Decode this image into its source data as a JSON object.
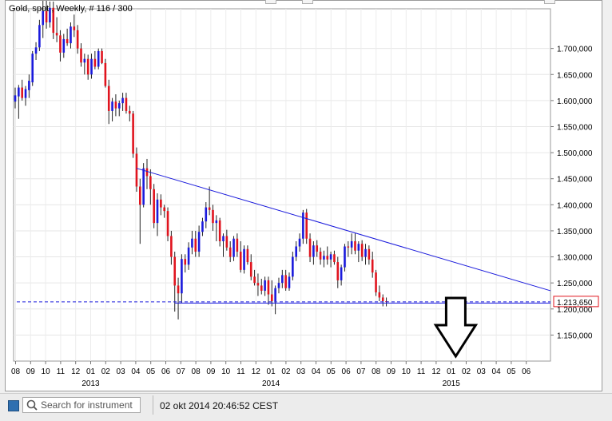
{
  "header": {
    "instrument_label": "Gold, spot , Weekly, # 116 / 300"
  },
  "status": {
    "search_placeholder": "Search for instrument",
    "timestamp": "02 okt 2014 20:46:52 CEST"
  },
  "colors": {
    "up": "#1a1adc",
    "down": "#e0141e",
    "line": "#1a1adc",
    "price_label_border": "#e0141e",
    "arrow": "#000000"
  },
  "chart_data": {
    "type": "candlestick",
    "title": "Gold, spot , Weekly, # 116 / 300",
    "current_price_label": "1.213,650",
    "current_price": 1213.65,
    "ylim": [
      1100,
      1770
    ],
    "yticks": [
      {
        "value": 1150,
        "label": "1.150,000"
      },
      {
        "value": 1200,
        "label": "1.200,000"
      },
      {
        "value": 1250,
        "label": "1.250,000"
      },
      {
        "value": 1300,
        "label": "1.300,000"
      },
      {
        "value": 1350,
        "label": "1.350,000"
      },
      {
        "value": 1400,
        "label": "1.400,000"
      },
      {
        "value": 1450,
        "label": "1.450,000"
      },
      {
        "value": 1500,
        "label": "1.500,000"
      },
      {
        "value": 1550,
        "label": "1.550,000"
      },
      {
        "value": 1600,
        "label": "1.600,000"
      },
      {
        "value": 1650,
        "label": "1.650,000"
      },
      {
        "value": 1700,
        "label": "1.700,000"
      }
    ],
    "month_labels": [
      "08",
      "09",
      "10",
      "11",
      "12",
      "01",
      "02",
      "03",
      "04",
      "05",
      "06",
      "07",
      "08",
      "09",
      "10",
      "11",
      "12",
      "01",
      "02",
      "03",
      "04",
      "05",
      "06",
      "07",
      "08",
      "09",
      "10",
      "11",
      "12",
      "01",
      "02",
      "03",
      "04",
      "05",
      "06"
    ],
    "year_labels": [
      {
        "label": "2013",
        "month_index": 5
      },
      {
        "label": "2014",
        "month_index": 17
      },
      {
        "label": "2015",
        "month_index": 29
      }
    ],
    "month_span": 35,
    "candles": [
      {
        "o": 1598,
        "h": 1625,
        "l": 1585,
        "c": 1610
      },
      {
        "o": 1608,
        "h": 1630,
        "l": 1565,
        "c": 1625
      },
      {
        "o": 1625,
        "h": 1640,
        "l": 1600,
        "c": 1605
      },
      {
        "o": 1605,
        "h": 1628,
        "l": 1590,
        "c": 1622
      },
      {
        "o": 1620,
        "h": 1650,
        "l": 1605,
        "c": 1638
      },
      {
        "o": 1635,
        "h": 1695,
        "l": 1628,
        "c": 1690
      },
      {
        "o": 1690,
        "h": 1712,
        "l": 1678,
        "c": 1702
      },
      {
        "o": 1702,
        "h": 1755,
        "l": 1695,
        "c": 1745
      },
      {
        "o": 1745,
        "h": 1795,
        "l": 1720,
        "c": 1772
      },
      {
        "o": 1772,
        "h": 1798,
        "l": 1738,
        "c": 1750
      },
      {
        "o": 1750,
        "h": 1790,
        "l": 1740,
        "c": 1778
      },
      {
        "o": 1778,
        "h": 1790,
        "l": 1718,
        "c": 1730
      },
      {
        "o": 1730,
        "h": 1760,
        "l": 1712,
        "c": 1725
      },
      {
        "o": 1725,
        "h": 1735,
        "l": 1675,
        "c": 1692
      },
      {
        "o": 1692,
        "h": 1728,
        "l": 1682,
        "c": 1718
      },
      {
        "o": 1718,
        "h": 1738,
        "l": 1705,
        "c": 1710
      },
      {
        "o": 1710,
        "h": 1750,
        "l": 1700,
        "c": 1742
      },
      {
        "o": 1742,
        "h": 1765,
        "l": 1722,
        "c": 1735
      },
      {
        "o": 1735,
        "h": 1745,
        "l": 1690,
        "c": 1700
      },
      {
        "o": 1700,
        "h": 1710,
        "l": 1665,
        "c": 1673
      },
      {
        "o": 1673,
        "h": 1690,
        "l": 1650,
        "c": 1680
      },
      {
        "o": 1680,
        "h": 1688,
        "l": 1640,
        "c": 1650
      },
      {
        "o": 1650,
        "h": 1690,
        "l": 1642,
        "c": 1680
      },
      {
        "o": 1680,
        "h": 1695,
        "l": 1660,
        "c": 1665
      },
      {
        "o": 1665,
        "h": 1700,
        "l": 1660,
        "c": 1695
      },
      {
        "o": 1695,
        "h": 1700,
        "l": 1670,
        "c": 1672
      },
      {
        "o": 1672,
        "h": 1680,
        "l": 1625,
        "c": 1628
      },
      {
        "o": 1628,
        "h": 1640,
        "l": 1555,
        "c": 1580
      },
      {
        "o": 1580,
        "h": 1605,
        "l": 1560,
        "c": 1598
      },
      {
        "o": 1598,
        "h": 1612,
        "l": 1570,
        "c": 1585
      },
      {
        "o": 1585,
        "h": 1600,
        "l": 1570,
        "c": 1595
      },
      {
        "o": 1595,
        "h": 1615,
        "l": 1580,
        "c": 1605
      },
      {
        "o": 1605,
        "h": 1615,
        "l": 1575,
        "c": 1580
      },
      {
        "o": 1580,
        "h": 1590,
        "l": 1560,
        "c": 1575
      },
      {
        "o": 1575,
        "h": 1580,
        "l": 1490,
        "c": 1498
      },
      {
        "o": 1498,
        "h": 1510,
        "l": 1425,
        "c": 1435
      },
      {
        "o": 1435,
        "h": 1450,
        "l": 1325,
        "c": 1400
      },
      {
        "o": 1400,
        "h": 1480,
        "l": 1395,
        "c": 1470
      },
      {
        "o": 1470,
        "h": 1488,
        "l": 1430,
        "c": 1455
      },
      {
        "o": 1455,
        "h": 1468,
        "l": 1400,
        "c": 1430
      },
      {
        "o": 1430,
        "h": 1440,
        "l": 1355,
        "c": 1365
      },
      {
        "o": 1365,
        "h": 1422,
        "l": 1340,
        "c": 1410
      },
      {
        "o": 1410,
        "h": 1420,
        "l": 1380,
        "c": 1395
      },
      {
        "o": 1395,
        "h": 1400,
        "l": 1375,
        "c": 1388
      },
      {
        "o": 1388,
        "h": 1395,
        "l": 1330,
        "c": 1340
      },
      {
        "o": 1340,
        "h": 1350,
        "l": 1285,
        "c": 1300
      },
      {
        "o": 1300,
        "h": 1310,
        "l": 1195,
        "c": 1245
      },
      {
        "o": 1245,
        "h": 1260,
        "l": 1180,
        "c": 1230
      },
      {
        "o": 1230,
        "h": 1305,
        "l": 1212,
        "c": 1296
      },
      {
        "o": 1296,
        "h": 1305,
        "l": 1270,
        "c": 1285
      },
      {
        "o": 1285,
        "h": 1328,
        "l": 1275,
        "c": 1318
      },
      {
        "o": 1318,
        "h": 1350,
        "l": 1305,
        "c": 1335
      },
      {
        "o": 1335,
        "h": 1350,
        "l": 1300,
        "c": 1310
      },
      {
        "o": 1310,
        "h": 1360,
        "l": 1300,
        "c": 1348
      },
      {
        "o": 1348,
        "h": 1375,
        "l": 1340,
        "c": 1368
      },
      {
        "o": 1368,
        "h": 1405,
        "l": 1355,
        "c": 1395
      },
      {
        "o": 1395,
        "h": 1435,
        "l": 1380,
        "c": 1390
      },
      {
        "o": 1390,
        "h": 1400,
        "l": 1350,
        "c": 1365
      },
      {
        "o": 1365,
        "h": 1380,
        "l": 1330,
        "c": 1370
      },
      {
        "o": 1370,
        "h": 1375,
        "l": 1320,
        "c": 1330
      },
      {
        "o": 1330,
        "h": 1345,
        "l": 1300,
        "c": 1340
      },
      {
        "o": 1340,
        "h": 1352,
        "l": 1312,
        "c": 1318
      },
      {
        "o": 1318,
        "h": 1330,
        "l": 1290,
        "c": 1300
      },
      {
        "o": 1300,
        "h": 1340,
        "l": 1292,
        "c": 1335
      },
      {
        "o": 1335,
        "h": 1345,
        "l": 1300,
        "c": 1310
      },
      {
        "o": 1310,
        "h": 1330,
        "l": 1270,
        "c": 1275
      },
      {
        "o": 1275,
        "h": 1322,
        "l": 1268,
        "c": 1315
      },
      {
        "o": 1315,
        "h": 1322,
        "l": 1285,
        "c": 1290
      },
      {
        "o": 1290,
        "h": 1305,
        "l": 1255,
        "c": 1262
      },
      {
        "o": 1262,
        "h": 1275,
        "l": 1245,
        "c": 1250
      },
      {
        "o": 1250,
        "h": 1268,
        "l": 1225,
        "c": 1245
      },
      {
        "o": 1245,
        "h": 1258,
        "l": 1228,
        "c": 1235
      },
      {
        "o": 1235,
        "h": 1262,
        "l": 1225,
        "c": 1255
      },
      {
        "o": 1255,
        "h": 1262,
        "l": 1208,
        "c": 1228
      },
      {
        "o": 1228,
        "h": 1255,
        "l": 1205,
        "c": 1215
      },
      {
        "o": 1215,
        "h": 1245,
        "l": 1190,
        "c": 1240
      },
      {
        "o": 1240,
        "h": 1260,
        "l": 1230,
        "c": 1250
      },
      {
        "o": 1250,
        "h": 1275,
        "l": 1240,
        "c": 1265
      },
      {
        "o": 1265,
        "h": 1275,
        "l": 1235,
        "c": 1240
      },
      {
        "o": 1240,
        "h": 1270,
        "l": 1235,
        "c": 1262
      },
      {
        "o": 1262,
        "h": 1310,
        "l": 1255,
        "c": 1300
      },
      {
        "o": 1300,
        "h": 1330,
        "l": 1292,
        "c": 1320
      },
      {
        "o": 1320,
        "h": 1345,
        "l": 1310,
        "c": 1335
      },
      {
        "o": 1335,
        "h": 1390,
        "l": 1325,
        "c": 1385
      },
      {
        "o": 1385,
        "h": 1392,
        "l": 1325,
        "c": 1335
      },
      {
        "o": 1335,
        "h": 1345,
        "l": 1290,
        "c": 1300
      },
      {
        "o": 1300,
        "h": 1330,
        "l": 1285,
        "c": 1322
      },
      {
        "o": 1322,
        "h": 1332,
        "l": 1300,
        "c": 1310
      },
      {
        "o": 1310,
        "h": 1318,
        "l": 1285,
        "c": 1295
      },
      {
        "o": 1295,
        "h": 1312,
        "l": 1280,
        "c": 1302
      },
      {
        "o": 1302,
        "h": 1320,
        "l": 1285,
        "c": 1295
      },
      {
        "o": 1295,
        "h": 1310,
        "l": 1280,
        "c": 1305
      },
      {
        "o": 1305,
        "h": 1312,
        "l": 1285,
        "c": 1290
      },
      {
        "o": 1290,
        "h": 1300,
        "l": 1240,
        "c": 1255
      },
      {
        "o": 1255,
        "h": 1285,
        "l": 1245,
        "c": 1280
      },
      {
        "o": 1280,
        "h": 1325,
        "l": 1272,
        "c": 1320
      },
      {
        "o": 1320,
        "h": 1330,
        "l": 1300,
        "c": 1318
      },
      {
        "o": 1318,
        "h": 1345,
        "l": 1305,
        "c": 1330
      },
      {
        "o": 1330,
        "h": 1345,
        "l": 1305,
        "c": 1312
      },
      {
        "o": 1312,
        "h": 1330,
        "l": 1290,
        "c": 1325
      },
      {
        "o": 1325,
        "h": 1332,
        "l": 1292,
        "c": 1300
      },
      {
        "o": 1300,
        "h": 1325,
        "l": 1285,
        "c": 1315
      },
      {
        "o": 1315,
        "h": 1322,
        "l": 1285,
        "c": 1295
      },
      {
        "o": 1295,
        "h": 1310,
        "l": 1260,
        "c": 1270
      },
      {
        "o": 1270,
        "h": 1275,
        "l": 1225,
        "c": 1232
      },
      {
        "o": 1232,
        "h": 1245,
        "l": 1215,
        "c": 1222
      },
      {
        "o": 1222,
        "h": 1228,
        "l": 1205,
        "c": 1215
      },
      {
        "o": 1215,
        "h": 1222,
        "l": 1205,
        "c": 1213.65
      }
    ],
    "trendline": {
      "from": {
        "week": 35,
        "value": 1470
      },
      "to": {
        "week": 146,
        "value": 1235
      }
    },
    "support_line_value": 1213.65,
    "arrow_week": 127
  }
}
